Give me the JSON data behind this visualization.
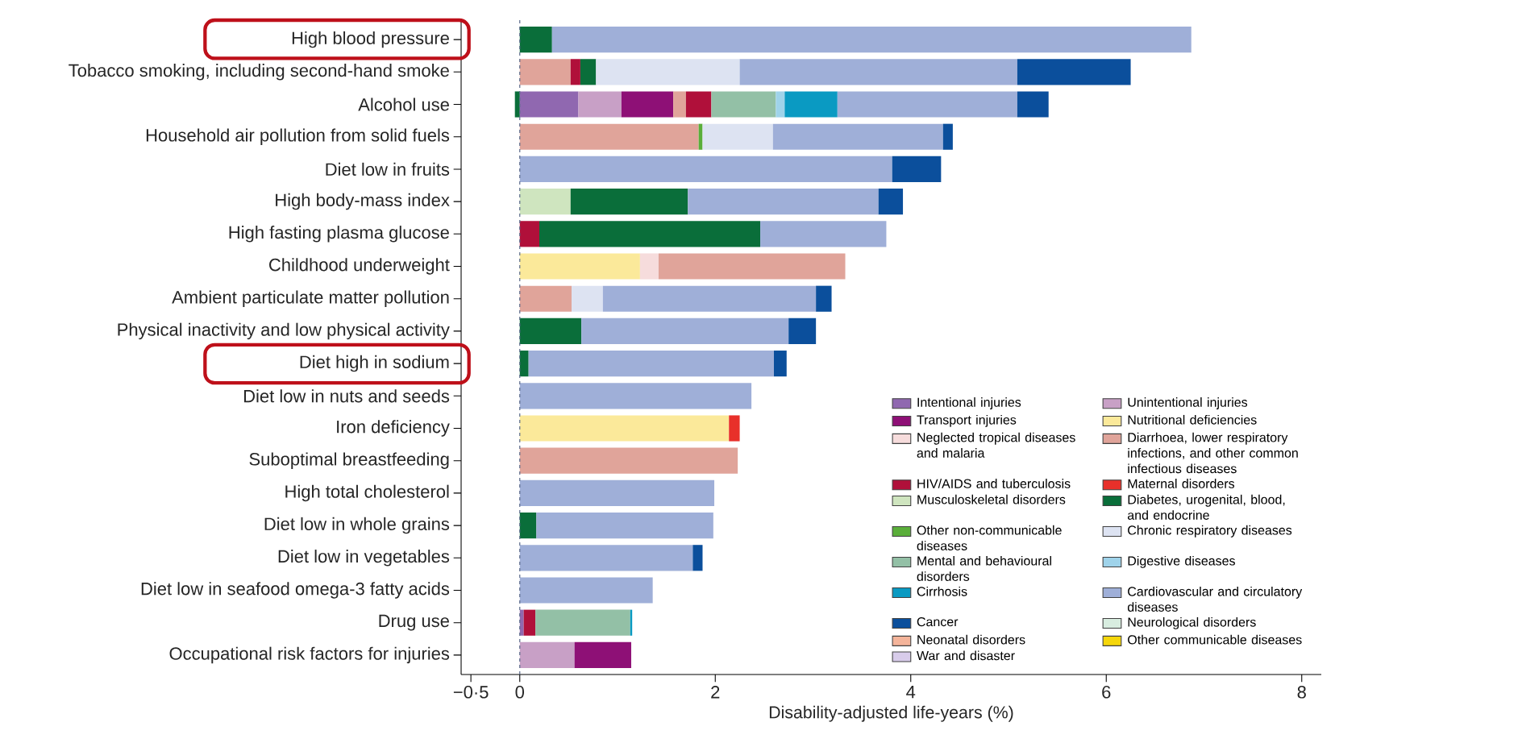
{
  "chart_data": {
    "type": "bar",
    "orientation": "horizontal",
    "stacked": true,
    "categories": [
      "High blood pressure",
      "Tobacco smoking, including second-hand smoke",
      "Alcohol use",
      "Household air pollution from solid fuels",
      "Diet low in fruits",
      "High body-mass index",
      "High fasting plasma glucose",
      "Childhood underweight",
      "Ambient particulate matter pollution",
      "Physical inactivity and low physical activity",
      "Diet high in sodium",
      "Diet low in nuts and seeds",
      "Iron deficiency",
      "Suboptimal breastfeeding",
      "High total cholesterol",
      "Diet low in whole grains",
      "Diet low in vegetables",
      "Diet low in seafood omega-3 fatty acids",
      "Drug use",
      "Occupational risk factors for injuries"
    ],
    "xlabel": "Disability-adjusted life-years (%)",
    "xlim": [
      -0.6,
      8.2
    ],
    "xticks": [
      {
        "value": -0.5,
        "label": "−0·5"
      },
      0,
      2,
      4,
      6,
      8
    ],
    "ref_lines": [
      {
        "axis": "x",
        "value": 0,
        "color": "#5a6a8a",
        "line_style": "dashed"
      }
    ],
    "legend": "bottom right",
    "series": [
      {
        "name": "Intentional injuries",
        "color": "#9068b0",
        "values": [
          null,
          null,
          0.6,
          null,
          null,
          null,
          null,
          null,
          null,
          null,
          null,
          null,
          null,
          null,
          null,
          null,
          null,
          null,
          0.04,
          null
        ]
      },
      {
        "name": "Unintentional injuries",
        "color": "#c8a0c6",
        "values": [
          null,
          null,
          0.44,
          null,
          null,
          null,
          null,
          null,
          null,
          null,
          null,
          null,
          null,
          null,
          null,
          null,
          null,
          null,
          null,
          0.56
        ]
      },
      {
        "name": "Transport injuries",
        "color": "#8e1076",
        "values": [
          null,
          null,
          0.53,
          null,
          null,
          null,
          null,
          null,
          null,
          null,
          null,
          null,
          null,
          null,
          null,
          null,
          null,
          null,
          null,
          0.58
        ]
      },
      {
        "name": "Nutritional deficiencies",
        "color": "#fbe99a",
        "values": [
          null,
          null,
          null,
          null,
          null,
          null,
          null,
          1.23,
          null,
          null,
          null,
          null,
          2.14,
          null,
          null,
          null,
          null,
          null,
          null,
          null
        ]
      },
      {
        "name": "Neglected tropical diseases and malaria",
        "color": "#f6dcdc",
        "values": [
          null,
          null,
          null,
          null,
          null,
          null,
          null,
          0.19,
          null,
          null,
          null,
          null,
          null,
          null,
          null,
          null,
          null,
          null,
          null,
          null
        ]
      },
      {
        "name": "Diarrhoea, lower respiratory infections, and other common infectious diseases",
        "color": "#e0a49a",
        "values": [
          null,
          0.52,
          0.13,
          1.83,
          null,
          null,
          null,
          1.91,
          0.53,
          null,
          null,
          null,
          null,
          2.23,
          null,
          null,
          null,
          null,
          null,
          null
        ]
      },
      {
        "name": "HIV/AIDS and tuberculosis",
        "color": "#b0103a",
        "values": [
          null,
          0.1,
          0.26,
          null,
          null,
          null,
          0.2,
          null,
          null,
          null,
          null,
          null,
          null,
          null,
          null,
          null,
          null,
          null,
          0.12,
          null
        ]
      },
      {
        "name": "Maternal disorders",
        "color": "#e8302a",
        "values": [
          null,
          null,
          null,
          null,
          null,
          null,
          null,
          null,
          null,
          null,
          null,
          null,
          0.11,
          null,
          null,
          null,
          null,
          null,
          null,
          null
        ]
      },
      {
        "name": "Musculoskeletal disorders",
        "color": "#cfe5bf",
        "values": [
          null,
          null,
          null,
          null,
          null,
          0.52,
          null,
          null,
          null,
          null,
          null,
          null,
          null,
          null,
          null,
          null,
          null,
          null,
          null,
          null
        ]
      },
      {
        "name": "Diabetes, urogenital, blood, and endocrine",
        "color": "#0a6e3a",
        "values": [
          0.33,
          0.16,
          -0.05,
          null,
          null,
          1.2,
          2.26,
          null,
          null,
          0.63,
          0.09,
          null,
          null,
          null,
          null,
          0.17,
          null,
          null,
          null,
          null
        ]
      },
      {
        "name": "Other non-communicable diseases",
        "color": "#5aae3a",
        "values": [
          null,
          null,
          null,
          0.04,
          null,
          null,
          null,
          null,
          null,
          null,
          null,
          null,
          null,
          null,
          null,
          null,
          null,
          null,
          null,
          null
        ]
      },
      {
        "name": "Chronic respiratory diseases",
        "color": "#dde3f2",
        "values": [
          null,
          1.47,
          null,
          0.72,
          null,
          null,
          null,
          null,
          0.32,
          null,
          null,
          null,
          null,
          null,
          null,
          null,
          null,
          null,
          null,
          null
        ]
      },
      {
        "name": "Mental and behavioural disorders",
        "color": "#93c0a6",
        "values": [
          null,
          null,
          0.66,
          null,
          null,
          null,
          null,
          null,
          null,
          null,
          null,
          null,
          null,
          null,
          null,
          null,
          null,
          null,
          0.97,
          null
        ]
      },
      {
        "name": "Digestive diseases",
        "color": "#9fd3ea",
        "values": [
          null,
          null,
          0.09,
          null,
          null,
          null,
          null,
          null,
          null,
          null,
          null,
          null,
          null,
          null,
          null,
          null,
          null,
          null,
          null,
          null
        ]
      },
      {
        "name": "Cirrhosis",
        "color": "#0a9ac2",
        "values": [
          null,
          null,
          0.54,
          null,
          null,
          null,
          null,
          null,
          null,
          null,
          null,
          null,
          null,
          null,
          null,
          null,
          null,
          null,
          0.02,
          null
        ]
      },
      {
        "name": "Cardiovascular and circulatory diseases",
        "color": "#9fafd8",
        "values": [
          6.54,
          2.84,
          1.84,
          1.74,
          3.81,
          1.95,
          1.29,
          null,
          2.18,
          2.12,
          2.51,
          2.37,
          null,
          null,
          1.99,
          1.81,
          1.77,
          1.36,
          null,
          null
        ]
      },
      {
        "name": "Cancer",
        "color": "#0b4f9c",
        "values": [
          null,
          1.16,
          0.32,
          0.1,
          0.5,
          0.25,
          null,
          null,
          0.16,
          0.28,
          0.13,
          null,
          null,
          null,
          null,
          null,
          0.1,
          null,
          null,
          null
        ]
      },
      {
        "name": "Neurological disorders",
        "color": "#d8ede0",
        "values": [
          null,
          null,
          null,
          null,
          null,
          null,
          null,
          null,
          null,
          null,
          null,
          null,
          null,
          null,
          null,
          null,
          null,
          null,
          null,
          null
        ]
      },
      {
        "name": "Neonatal disorders",
        "color": "#f4b49a",
        "values": [
          null,
          null,
          null,
          null,
          null,
          null,
          null,
          null,
          null,
          null,
          null,
          null,
          null,
          null,
          null,
          null,
          null,
          null,
          null,
          null
        ]
      },
      {
        "name": "Other communicable diseases",
        "color": "#f5d60a",
        "values": [
          null,
          null,
          null,
          null,
          null,
          null,
          null,
          null,
          null,
          null,
          null,
          null,
          null,
          null,
          null,
          null,
          null,
          null,
          null,
          null
        ]
      },
      {
        "name": "War and disaster",
        "color": "#d8ccea",
        "values": [
          null,
          null,
          null,
          null,
          null,
          null,
          null,
          null,
          null,
          null,
          null,
          null,
          null,
          null,
          null,
          null,
          null,
          null,
          null,
          null
        ]
      }
    ]
  }
}
